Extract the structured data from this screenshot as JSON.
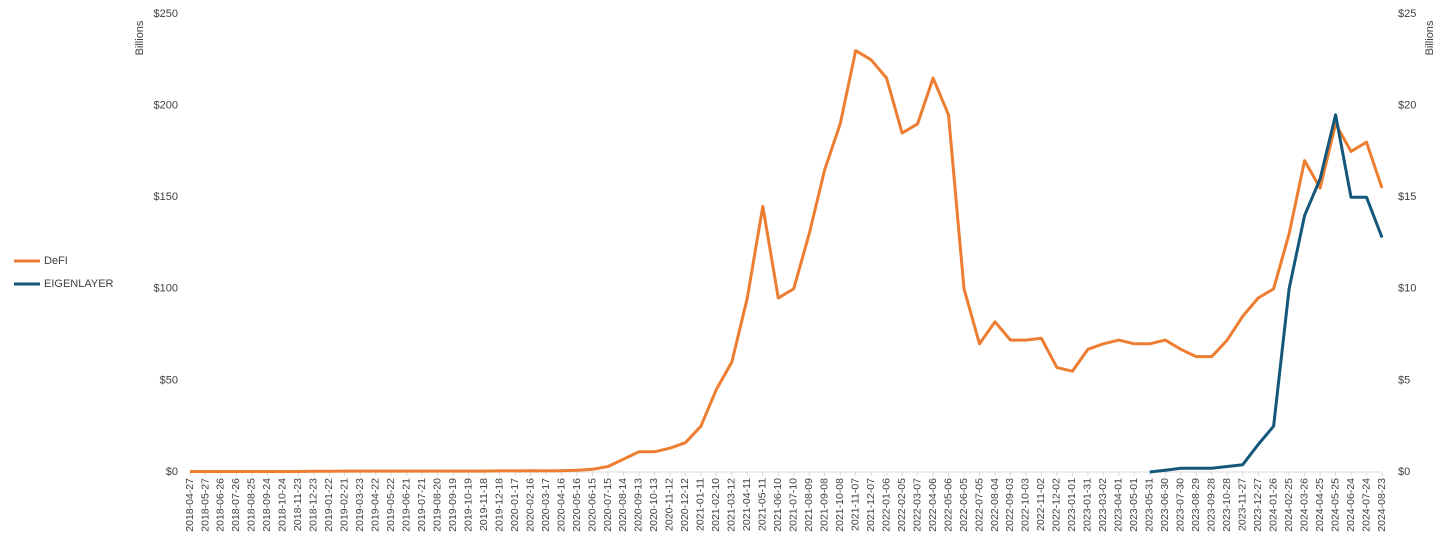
{
  "chart_data": {
    "type": "line",
    "y_label": "Billions",
    "y2_label": "Billions",
    "x": [
      "2018-04-27",
      "2018-05-27",
      "2018-06-26",
      "2018-07-26",
      "2018-08-25",
      "2018-09-24",
      "2018-10-24",
      "2018-11-23",
      "2018-12-23",
      "2019-01-22",
      "2019-02-21",
      "2019-03-23",
      "2019-04-22",
      "2019-05-22",
      "2019-06-21",
      "2019-07-21",
      "2019-08-20",
      "2019-09-19",
      "2019-10-19",
      "2019-11-18",
      "2019-12-18",
      "2020-01-17",
      "2020-02-16",
      "2020-03-17",
      "2020-04-16",
      "2020-05-16",
      "2020-06-15",
      "2020-07-15",
      "2020-08-14",
      "2020-09-13",
      "2020-10-13",
      "2020-11-12",
      "2020-12-12",
      "2021-01-11",
      "2021-02-10",
      "2021-03-12",
      "2021-04-11",
      "2021-05-11",
      "2021-06-10",
      "2021-07-10",
      "2021-08-09",
      "2021-09-08",
      "2021-10-08",
      "2021-11-07",
      "2021-12-07",
      "2022-01-06",
      "2022-02-05",
      "2022-03-07",
      "2022-04-06",
      "2022-05-06",
      "2022-06-05",
      "2022-07-05",
      "2022-08-04",
      "2022-09-03",
      "2022-10-03",
      "2022-11-02",
      "2022-12-02",
      "2023-01-01",
      "2023-01-31",
      "2023-03-02",
      "2023-04-01",
      "2023-05-01",
      "2023-05-31",
      "2023-06-30",
      "2023-07-30",
      "2023-08-29",
      "2023-09-28",
      "2023-10-28",
      "2023-11-27",
      "2023-12-27",
      "2024-01-26",
      "2024-02-25",
      "2024-03-26",
      "2024-04-25",
      "2024-05-25",
      "2024-06-24",
      "2024-07-24",
      "2024-08-23"
    ],
    "series": [
      {
        "name": "DeFI",
        "color": "#ed7d31",
        "values": [
          0.3,
          0.3,
          0.3,
          0.3,
          0.3,
          0.3,
          0.3,
          0.3,
          0.4,
          0.4,
          0.5,
          0.5,
          0.5,
          0.5,
          0.5,
          0.5,
          0.5,
          0.5,
          0.5,
          0.5,
          0.6,
          0.6,
          0.7,
          0.6,
          0.7,
          1,
          1.5,
          3,
          7,
          11,
          11,
          13,
          16,
          25,
          45,
          60,
          95,
          145,
          95,
          100,
          130,
          165,
          190,
          230,
          225,
          215,
          185,
          190,
          215,
          195,
          100,
          70,
          82,
          72,
          72,
          73,
          57,
          55,
          67,
          70,
          72,
          70,
          70,
          72,
          67,
          63,
          63,
          72,
          85,
          95,
          100,
          130,
          170,
          155,
          190,
          175,
          180,
          155
        ]
      },
      {
        "name": "EIGENLAYER",
        "color": "#13587a",
        "axis": "y2",
        "values": [
          null,
          null,
          null,
          null,
          null,
          null,
          null,
          null,
          null,
          null,
          null,
          null,
          null,
          null,
          null,
          null,
          null,
          null,
          null,
          null,
          null,
          null,
          null,
          null,
          null,
          null,
          null,
          null,
          null,
          null,
          null,
          null,
          null,
          null,
          null,
          null,
          null,
          null,
          null,
          null,
          null,
          null,
          null,
          null,
          null,
          null,
          null,
          null,
          null,
          null,
          null,
          null,
          null,
          null,
          null,
          null,
          null,
          null,
          null,
          null,
          null,
          null,
          0,
          0.1,
          0.2,
          0.2,
          0.2,
          0.3,
          0.4,
          1.5,
          2.5,
          10,
          14,
          16,
          19.5,
          15,
          15,
          12.8
        ]
      }
    ],
    "ylim": [
      0,
      250
    ],
    "yticks": [
      {
        "value": 0,
        "label": "$0"
      },
      {
        "value": 50,
        "label": "$50"
      },
      {
        "value": 100,
        "label": "$100"
      },
      {
        "value": 150,
        "label": "$150"
      },
      {
        "value": 200,
        "label": "$200"
      },
      {
        "value": 250,
        "label": "$250"
      }
    ],
    "y2lim": [
      0,
      25
    ],
    "y2ticks": [
      {
        "value": 0,
        "label": "$0"
      },
      {
        "value": 5,
        "label": "$5"
      },
      {
        "value": 10,
        "label": "$10"
      },
      {
        "value": 15,
        "label": "$15"
      },
      {
        "value": 20,
        "label": "$20"
      },
      {
        "value": 25,
        "label": "$25"
      }
    ],
    "legend": "left"
  }
}
